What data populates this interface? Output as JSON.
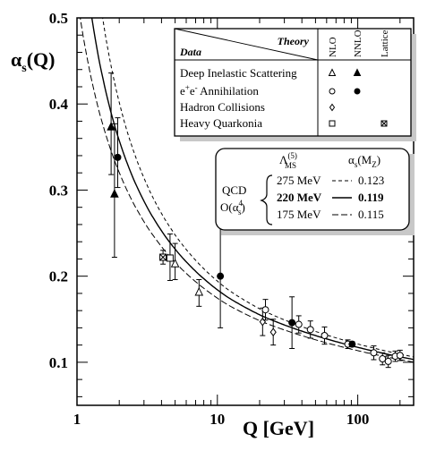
{
  "chart_data": {
    "type": "scatter",
    "xscale": "log",
    "xlim": [
      1,
      250
    ],
    "ylim": [
      0.05,
      0.5
    ],
    "xlabel": "Q [GeV]",
    "ylabel": "αs(Q)",
    "x_ticks": [
      {
        "value": 1,
        "label": "1"
      },
      {
        "value": 10,
        "label": "10"
      },
      {
        "value": 100,
        "label": "100"
      }
    ],
    "y_ticks": [
      {
        "value": 0.1,
        "label": "0.1"
      },
      {
        "value": 0.2,
        "label": "0.2"
      },
      {
        "value": 0.3,
        "label": "0.3"
      },
      {
        "value": 0.4,
        "label": "0.4"
      },
      {
        "value": 0.5,
        "label": "0.5"
      }
    ],
    "legend": {
      "header_theory": "Theory",
      "header_data": "Data",
      "columns": [
        "NLO",
        "NNLO",
        "Lattice"
      ],
      "rows": [
        {
          "label": "Deep Inelastic Scattering",
          "symbols": [
            "triangle-open",
            "triangle-filled",
            ""
          ]
        },
        {
          "label_pre": "e",
          "label_sup1": "+",
          "label_mid": "e",
          "label_sup2": "-",
          "label_post": " Annihilation",
          "symbols": [
            "circle-open",
            "circle-filled",
            ""
          ]
        },
        {
          "label": "Hadron Collisions",
          "symbols": [
            "diamond-open",
            "",
            ""
          ]
        },
        {
          "label": "Heavy Quarkonia",
          "symbols": [
            "square-open",
            "",
            "square-crossed"
          ]
        }
      ]
    },
    "curve_legend": {
      "col_lambda_base": "Λ",
      "col_lambda_sup": "(5)",
      "col_lambda_sub": "MS",
      "col_alpha": "α",
      "col_alpha_sub": "s",
      "col_alpha_arg": "(M",
      "col_alpha_arg_sub": "Z",
      "col_alpha_arg_end": ")",
      "label_top": "QCD",
      "label_bottom_pre": "O(α",
      "label_bottom_sup": "4",
      "label_bottom_sub": "s",
      "label_bottom_post": ")",
      "rows": [
        {
          "lambda": "275 MeV",
          "alpha": "0.123",
          "style": "dashed",
          "bold": false
        },
        {
          "lambda": "220 MeV",
          "alpha": "0.119",
          "style": "solid",
          "bold": true
        },
        {
          "lambda": "175 MeV",
          "alpha": "0.115",
          "style": "dashed",
          "bold": false
        }
      ]
    },
    "curves": [
      {
        "lambda_mev": 275,
        "alpha_mz": 0.123,
        "style": "dashed",
        "band": "upper"
      },
      {
        "lambda_mev": 220,
        "alpha_mz": 0.119,
        "style": "solid",
        "band": "central"
      },
      {
        "lambda_mev": 175,
        "alpha_mz": 0.115,
        "style": "dashed",
        "band": "lower"
      }
    ],
    "points": [
      {
        "q": 1.75,
        "alpha": 0.373,
        "err_lo": 0.055,
        "err_hi": 0.063,
        "marker": "triangle-filled"
      },
      {
        "q": 1.85,
        "alpha": 0.295,
        "err_lo": 0.073,
        "err_hi": 0.082,
        "marker": "triangle-filled"
      },
      {
        "q": 1.95,
        "alpha": 0.338,
        "err_lo": 0.035,
        "err_hi": 0.046,
        "marker": "circle-filled"
      },
      {
        "q": 4.1,
        "alpha": 0.222,
        "err_lo": 0.008,
        "err_hi": 0.008,
        "marker": "square-crossed"
      },
      {
        "q": 4.6,
        "alpha": 0.221,
        "err_lo": 0.026,
        "err_hi": 0.028,
        "marker": "square-open"
      },
      {
        "q": 5.0,
        "alpha": 0.214,
        "err_lo": 0.018,
        "err_hi": 0.024,
        "marker": "triangle-open"
      },
      {
        "q": 7.4,
        "alpha": 0.181,
        "err_lo": 0.016,
        "err_hi": 0.015,
        "marker": "triangle-open"
      },
      {
        "q": 10.5,
        "alpha": 0.2,
        "err_lo": 0.06,
        "err_hi": 0.06,
        "marker": "circle-filled"
      },
      {
        "q": 21,
        "alpha": 0.147,
        "err_lo": 0.016,
        "err_hi": 0.016,
        "marker": "diamond-open"
      },
      {
        "q": 22,
        "alpha": 0.161,
        "err_lo": 0.012,
        "err_hi": 0.012,
        "marker": "circle-open"
      },
      {
        "q": 25,
        "alpha": 0.135,
        "err_lo": 0.015,
        "err_hi": 0.015,
        "marker": "diamond-open"
      },
      {
        "q": 34,
        "alpha": 0.146,
        "err_lo": 0.03,
        "err_hi": 0.03,
        "marker": "circle-filled"
      },
      {
        "q": 38,
        "alpha": 0.144,
        "err_lo": 0.01,
        "err_hi": 0.01,
        "marker": "circle-open"
      },
      {
        "q": 46,
        "alpha": 0.138,
        "err_lo": 0.01,
        "err_hi": 0.01,
        "marker": "circle-open"
      },
      {
        "q": 58,
        "alpha": 0.131,
        "err_lo": 0.01,
        "err_hi": 0.01,
        "marker": "circle-open"
      },
      {
        "q": 85,
        "alpha": 0.121,
        "err_lo": 0.005,
        "err_hi": 0.005,
        "marker": "circle-open"
      },
      {
        "q": 91.2,
        "alpha": 0.121,
        "err_lo": 0.003,
        "err_hi": 0.003,
        "marker": "circle-filled"
      },
      {
        "q": 130,
        "alpha": 0.111,
        "err_lo": 0.008,
        "err_hi": 0.008,
        "marker": "circle-open"
      },
      {
        "q": 150,
        "alpha": 0.104,
        "err_lo": 0.007,
        "err_hi": 0.007,
        "marker": "circle-open"
      },
      {
        "q": 165,
        "alpha": 0.101,
        "err_lo": 0.007,
        "err_hi": 0.007,
        "marker": "circle-open"
      },
      {
        "q": 185,
        "alpha": 0.107,
        "err_lo": 0.006,
        "err_hi": 0.006,
        "marker": "circle-open"
      },
      {
        "q": 200,
        "alpha": 0.108,
        "err_lo": 0.006,
        "err_hi": 0.006,
        "marker": "circle-open"
      }
    ]
  }
}
